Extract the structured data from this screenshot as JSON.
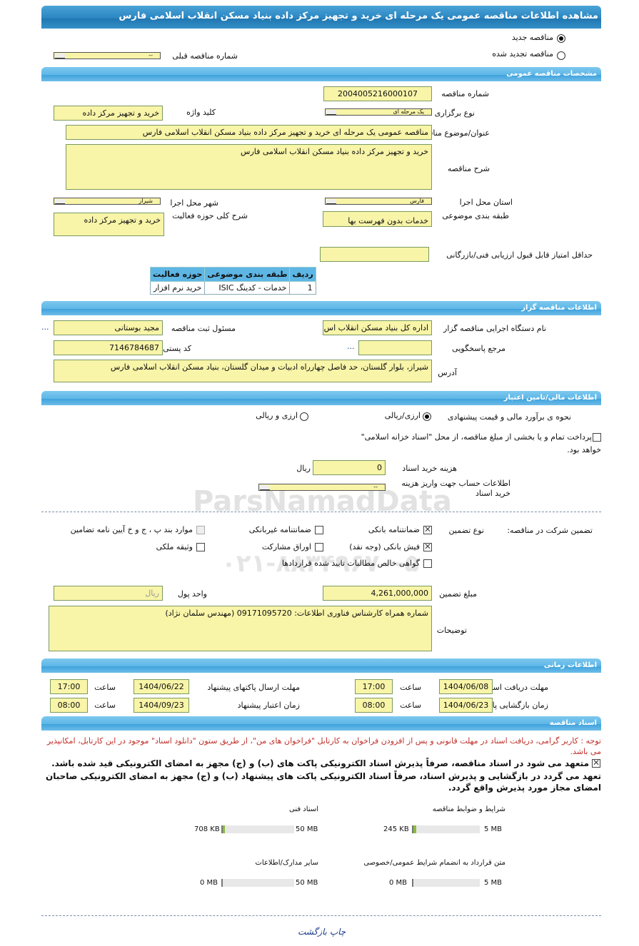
{
  "title": "مشاهده اطلاعات مناقصه عمومی یک مرحله ای خرید و تجهیز مرکز داده بنیاد مسکن انقلاب اسلامی فارس",
  "watermark": {
    "text": "ParsNamadData",
    "phone": "۰۲۱-۸۸۳۴۹۶۷۰-۵"
  },
  "tender_type": {
    "new_label": "مناقصه جدید",
    "renewed_label": "مناقصه تجدید شده",
    "selected": "new",
    "prev_number_label": "شماره مناقصه قبلی",
    "prev_number_value": "--"
  },
  "general": {
    "header": "مشخصات مناقصه عمومی",
    "number_label": "شماره مناقصه",
    "number_value": "2004005216000107",
    "holding_type_label": "نوع برگزاری",
    "holding_type_value": "یک مرحله ای",
    "keyword_label": "کلید واژه",
    "keyword_value": "خرید و تجهیز مرکز داده",
    "subject_label": "عنوان/موضوع مناقصه",
    "subject_value": "مناقصه عمومی یک مرحله ای خرید و تجهیز مرکز داده بنیاد مسکن انقلاب اسلامی فارس",
    "desc_label": "شرح مناقصه",
    "desc_value": "خرید و تجهیز مرکز داده بنیاد مسکن انقلاب اسلامی فارس",
    "province_label": "استان محل اجرا",
    "province_value": "فارس",
    "city_label": "شهر محل اجرا",
    "city_value": "شیراز",
    "category_label": "طبقه بندی موضوعی",
    "category_value": "خدمات بدون فهرست بها",
    "activity_label": "شرح کلی حوزه فعالیت",
    "activity_value": "خرید و تجهیز مرکز داده",
    "min_score_label": "حداقل امتیاز قابل قبول ارزیابی فنی/بازرگانی",
    "min_score_value": "",
    "table": {
      "headers": [
        "ردیف",
        "طبقه بندی موضوعی",
        "حوزه فعالیت"
      ],
      "rows": [
        [
          "1",
          "خدمات - کدینگ ISIC",
          "خرید نرم افزار"
        ]
      ]
    }
  },
  "organizer": {
    "header": "اطلاعات مناقصه گزار",
    "org_label": "نام دستگاه اجرایی مناقصه گزار",
    "org_value": "اداره کل بنیاد مسکن انقلاب اس",
    "responsible_label": "مسئول ثبت مناقصه",
    "responsible_value": "مجید بوستانی",
    "more": "...",
    "reference_label": "مرجع پاسخگویی",
    "reference_value": "",
    "reference_more": "...",
    "postal_label": "کد پستی",
    "postal_value": "7146784687",
    "address_label": "آدرس",
    "address_value": "شیراز، بلوار گلستان، حد فاصل چهارراه ادبیات و میدان گلستان، بنیاد مسکن انقلاب اسلامی فارس"
  },
  "financial": {
    "header": "اطلاعات مالی/تامین اعتبار",
    "estimate_label": "نحوه ی برآورد مالی و قیمت پیشنهادی",
    "opt1": "ارزی/ریالی",
    "opt2": "ارزی و ریالی",
    "selected": "opt1",
    "treasury_text": "پرداخت تمام و یا بخشی از مبلغ مناقصه، از محل \"اسناد خزانه اسلامی\"",
    "treasury_text2": "خواهد بود.",
    "treasury_checked": false,
    "doc_fee_label": "هزینه خرید اسناد",
    "doc_fee_value": "0",
    "doc_fee_unit": "ریال",
    "account_label": "اطلاعات حساب جهت واریز هزینه خرید اسناد",
    "account_value": "--"
  },
  "guarantee": {
    "label": "تضمین شرکت در مناقصه:",
    "type_label": "نوع تضمین",
    "options": [
      {
        "label": "ضمانتنامه بانکی",
        "checked": true
      },
      {
        "label": "ضمانتنامه غیربانکی",
        "checked": false
      },
      {
        "label": "موارد بند پ ، ج و خ آیین نامه تضامین",
        "checked": false,
        "disabled": true
      },
      {
        "label": "فیش بانکی (وجه نقد)",
        "checked": true
      },
      {
        "label": "اوراق مشارکت",
        "checked": false
      },
      {
        "label": "وثیقه ملکی",
        "checked": false
      },
      {
        "label": "گواهی خالص مطالبات تایید شده قراردادها",
        "checked": false
      }
    ],
    "amount_label": "مبلغ تضمین",
    "amount_value": "4,261,000,000",
    "currency_label": "واحد پول",
    "currency_value": "ریال",
    "notes_label": "توضیحات",
    "notes_value": "شماره همراه کارشناس فناوری اطلاعات: 09171095720 (مهندس سلمان نژاد)"
  },
  "timing": {
    "header": "اطلاعات زمانی",
    "time_label": "ساعت",
    "doc_receive_label": "مهلت دریافت اسناد",
    "doc_receive_date": "1404/06/08",
    "doc_receive_time": "17:00",
    "submit_label": "مهلت ارسال پاکتهای پیشنهاد",
    "submit_date": "1404/06/22",
    "submit_time": "17:00",
    "opening_label": "زمان بازگشایی پاکت ها",
    "opening_date": "1404/06/23",
    "opening_time": "08:00",
    "validity_label": "زمان اعتبار پیشنهاد",
    "validity_date": "1404/09/23",
    "validity_time": "08:00"
  },
  "documents": {
    "header": "اسناد مناقصه",
    "notice": "توجه : کاربر گرامی، دریافت اسناد در مهلت قانونی و پس از افزودن فراخوان به کارتابل \"فراخوان های من\"، از طریق ستون \"دانلود اسناد\" موجود در این کارتابل، امکانپذیر می باشد.",
    "commit1": "متعهد می شود در اسناد مناقصه، صرفاً پذیرش اسناد الکترونیکی پاکت های (ب) و (ج) مجهز به امضای الکترونیکی قید شده باشد.",
    "commit1_checked": true,
    "commit2": "تعهد می گردد در بازگشایی و پذیرش اسناد، صرفاً اسناد الکترونیکی پاکت های پیشنهاد (ب) و (ج) مجهز به امضای الکترونیکی صاحبان امضای مجاز مورد پذیرش واقع گردد.",
    "files": [
      {
        "label": "شرایط و ضوابط مناقصه",
        "size": "245 KB",
        "max": "5 MB",
        "fraction": 0.048
      },
      {
        "label": "اسناد فنی",
        "size": "708 KB",
        "max": "50 MB",
        "fraction": 0.014
      },
      {
        "label": "متن قرارداد به انضمام شرایط عمومی/خصوصی",
        "size": "0 MB",
        "max": "5 MB",
        "fraction": 0
      },
      {
        "label": "سایر مدارک/اطلاعات",
        "size": "0 MB",
        "max": "50 MB",
        "fraction": 0
      }
    ]
  },
  "footer": {
    "print_label": "چاپ",
    "back_label": "بازگشت"
  },
  "colors": {
    "title_bar": "#2b86c2",
    "section_header": "#5db6e6",
    "input_bg": "#f8f4a8",
    "notice": "#c0302a",
    "link": "#1a3a8a",
    "progress": "#8bbd3a"
  }
}
